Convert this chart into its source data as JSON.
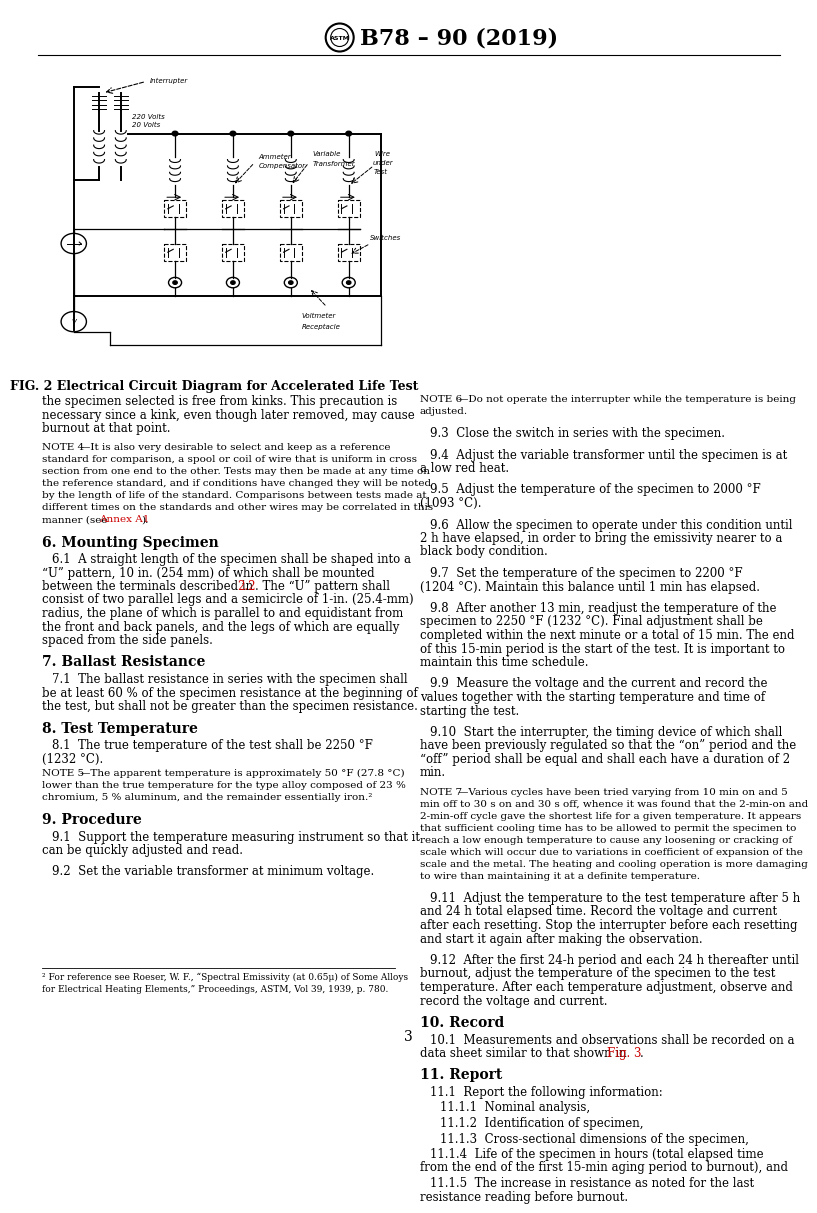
{
  "title": "B78 – 90 (2019)",
  "page_number": "3",
  "bg": "#ffffff",
  "red": "#cc0000",
  "fig_caption": "FIG. 2 Electrical Circuit Diagram for Accelerated Life Test"
}
